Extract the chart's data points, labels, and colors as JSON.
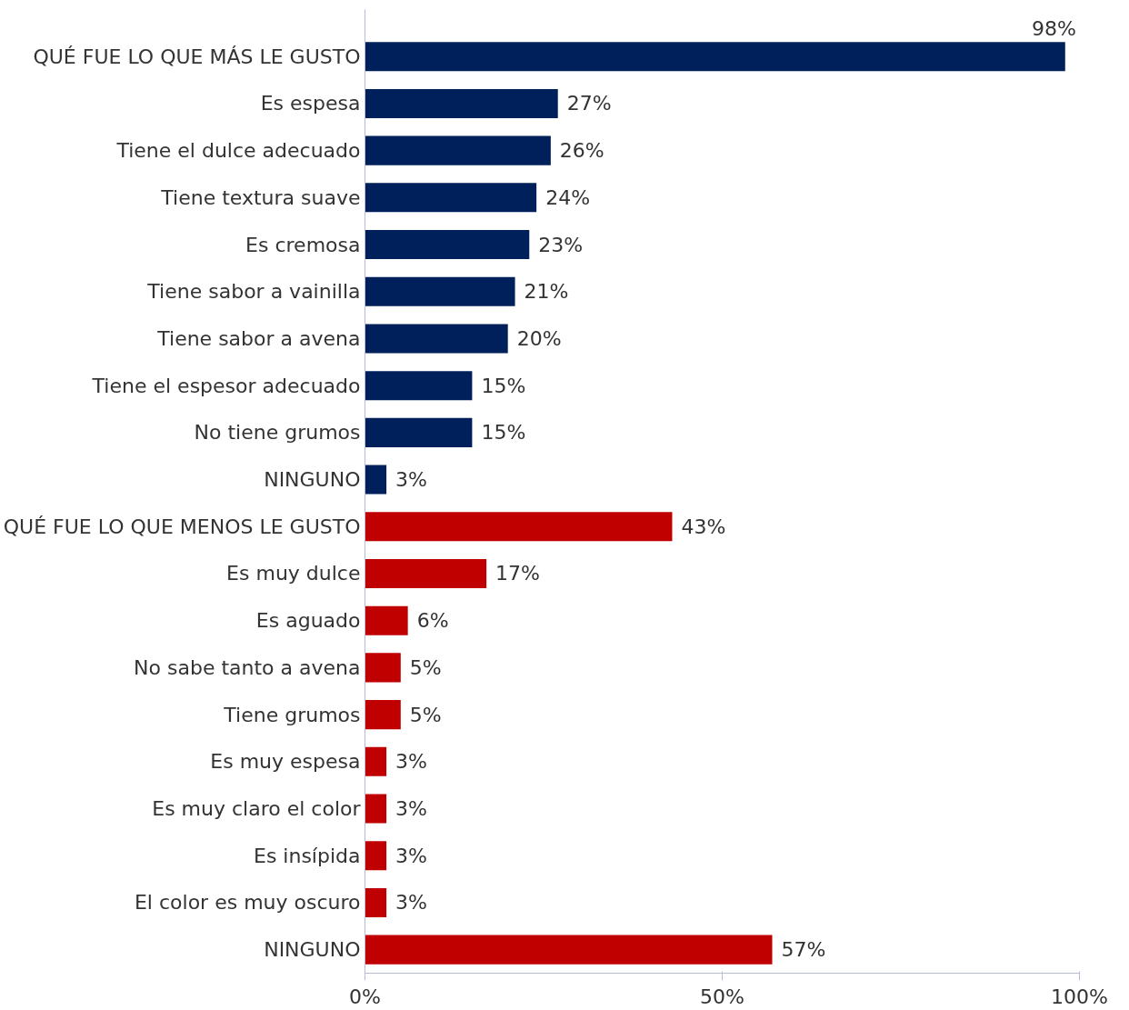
{
  "chart_data": {
    "type": "bar",
    "orientation": "horizontal",
    "categories": [
      "QUÉ FUE LO QUE MÁS LE GUSTO",
      "Es espesa",
      "Tiene el dulce adecuado",
      "Tiene textura suave",
      "Es cremosa",
      "Tiene sabor a vainilla",
      "Tiene sabor a avena",
      "Tiene el espesor adecuado",
      "No tiene grumos",
      "NINGUNO",
      "QUÉ FUE LO QUE MENOS LE GUSTO",
      "Es muy dulce",
      "Es aguado",
      "No sabe tanto a avena",
      "Tiene grumos",
      "Es muy espesa",
      "Es muy claro el color",
      "Es insípida",
      "El color es muy oscuro",
      "NINGUNO"
    ],
    "values": [
      98,
      27,
      26,
      24,
      23,
      21,
      20,
      15,
      15,
      3,
      43,
      17,
      6,
      5,
      5,
      3,
      3,
      3,
      3,
      57
    ],
    "value_labels": [
      "98%",
      "27%",
      "26%",
      "24%",
      "23%",
      "21%",
      "20%",
      "15%",
      "15%",
      "3%",
      "43%",
      "17%",
      "6%",
      "5%",
      "5%",
      "3%",
      "3%",
      "3%",
      "3%",
      "57%"
    ],
    "colors": [
      "#00205b",
      "#00205b",
      "#00205b",
      "#00205b",
      "#00205b",
      "#00205b",
      "#00205b",
      "#00205b",
      "#00205b",
      "#00205b",
      "#c00000",
      "#c00000",
      "#c00000",
      "#c00000",
      "#c00000",
      "#c00000",
      "#c00000",
      "#c00000",
      "#c00000",
      "#c00000"
    ],
    "xlim": [
      0,
      100
    ],
    "xticks": [
      {
        "value": 0,
        "label": "0%"
      },
      {
        "value": 50,
        "label": "50%"
      },
      {
        "value": 100,
        "label": "100%"
      }
    ],
    "grid": false
  }
}
